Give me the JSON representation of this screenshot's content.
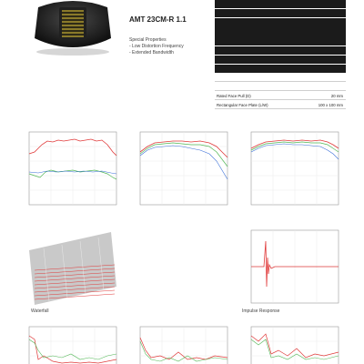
{
  "product": {
    "model": "AMT 23CM-R 1.1",
    "features_title": "Special Properties",
    "features": [
      "- Low Distortion Frequency",
      "- Extended Bandwidth"
    ]
  },
  "specs": [
    {
      "label": "",
      "value": "",
      "style": "dark"
    },
    {
      "label": "",
      "value": "",
      "style": "dark"
    },
    {
      "label": "",
      "value": "",
      "style": "dark"
    },
    {
      "label": "",
      "value": "",
      "style": "dark"
    },
    {
      "label": "",
      "value": "",
      "style": "dark"
    },
    {
      "label": "",
      "value": "",
      "style": "dark"
    },
    {
      "label": "",
      "value": "",
      "style": "dark"
    },
    {
      "label": "",
      "value": "",
      "style": "dark"
    },
    {
      "label": "",
      "value": "",
      "style": "light"
    },
    {
      "label": "",
      "value": "",
      "style": "light"
    },
    {
      "label": "Rated Face Pull (D)",
      "value": "20 mm",
      "style": "light"
    },
    {
      "label": "Rectangular Face Plate (L/W)",
      "value": "100 x 100 mm",
      "style": "light"
    }
  ],
  "captions": {
    "waterfall": "Waterfall",
    "impulse": "Impulse Response"
  },
  "colors": {
    "red": "#e03a3a",
    "green": "#53b857",
    "blue": "#3a6fd8",
    "dark_row": "#1b1b1b",
    "grid": "#dddddd"
  },
  "icons": {
    "product_photo": "ribbon-tweeter-photo"
  }
}
